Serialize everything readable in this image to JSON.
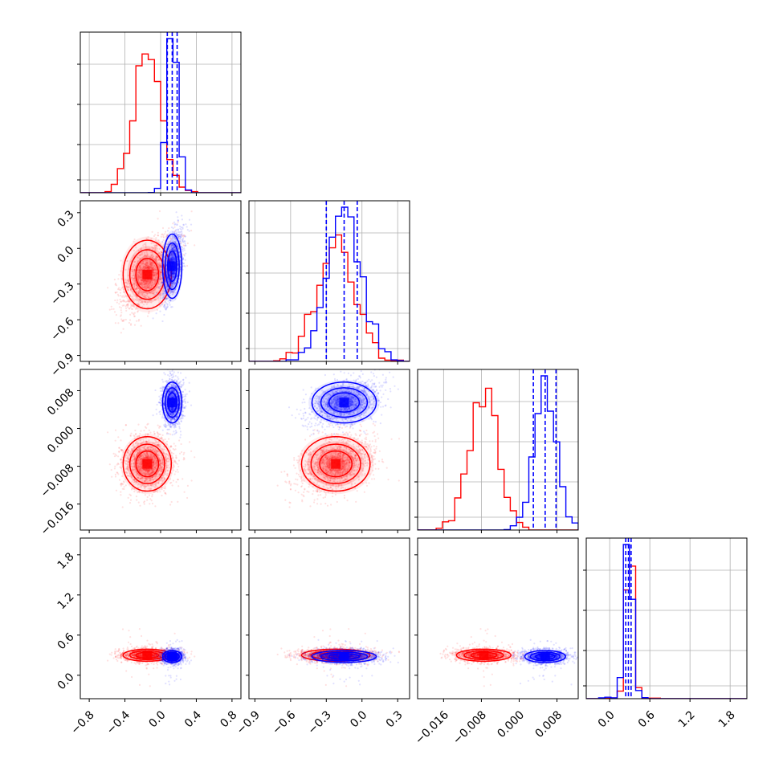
{
  "colors": {
    "series_a": "#ff0000",
    "series_b": "#0000ff",
    "grid": "#b0b0b0",
    "axes": "#000000"
  },
  "chart_data": {
    "type": "corner",
    "grid": true,
    "parameters": [
      {
        "range": [
          -0.9,
          0.9
        ],
        "ticks": [
          -0.8,
          -0.4,
          0.0,
          0.4,
          0.8
        ],
        "tick_labels": [
          "−0.8",
          "−0.4",
          "0.0",
          "0.4",
          "0.8"
        ]
      },
      {
        "range": [
          -0.95,
          0.4
        ],
        "ticks": [
          -0.9,
          -0.6,
          -0.3,
          0.0,
          0.3
        ],
        "tick_labels": [
          "−0.9",
          "−0.6",
          "−0.3",
          "0.0",
          "0.3"
        ]
      },
      {
        "range": [
          -0.0215,
          0.0125
        ],
        "ticks": [
          -0.016,
          -0.008,
          0.0,
          0.008
        ],
        "tick_labels": [
          "−0.016",
          "−0.008",
          "0.000",
          "0.008"
        ]
      },
      {
        "range": [
          -0.35,
          2.05
        ],
        "ticks": [
          0.0,
          0.6,
          1.2,
          1.8
        ],
        "tick_labels": [
          "0.0",
          "0.6",
          "1.2",
          "1.8"
        ]
      }
    ],
    "left_tick_labels": [
      {
        "row": 1,
        "labels": [
          "0.3",
          "0.0",
          "−0.3",
          "−0.6",
          "−0.9"
        ],
        "values": [
          0.3,
          0.0,
          -0.3,
          -0.6,
          -0.9
        ]
      },
      {
        "row": 2,
        "labels": [
          "0.008",
          "0.000",
          "−0.008",
          "−0.016"
        ],
        "values": [
          0.008,
          0.0,
          -0.008,
          -0.016
        ]
      },
      {
        "row": 3,
        "labels": [
          "1.8",
          "1.2",
          "0.6",
          "0.0"
        ],
        "values": [
          1.8,
          1.2,
          0.6,
          0.0
        ]
      }
    ],
    "series": [
      {
        "color": "#ff0000",
        "mean": [
          -0.15,
          -0.22,
          -0.0075,
          0.3
        ],
        "sd": [
          0.15,
          0.16,
          0.0032,
          0.05
        ],
        "hist_scale": [
          0.9,
          0.82,
          0.92,
          0.86
        ]
      },
      {
        "color": "#0000ff",
        "mean": [
          0.13,
          -0.15,
          0.0055,
          0.28
        ],
        "sd": [
          0.06,
          0.15,
          0.0024,
          0.05
        ],
        "hist_scale": [
          1.0,
          1.0,
          1.0,
          1.0
        ],
        "quantile_lines": [
          [
            0.075,
            0.13,
            0.185
          ],
          [
            -0.3,
            -0.15,
            -0.04
          ],
          [
            0.003,
            0.0055,
            0.0078
          ],
          [
            0.24,
            0.28,
            0.32
          ]
        ]
      }
    ]
  }
}
